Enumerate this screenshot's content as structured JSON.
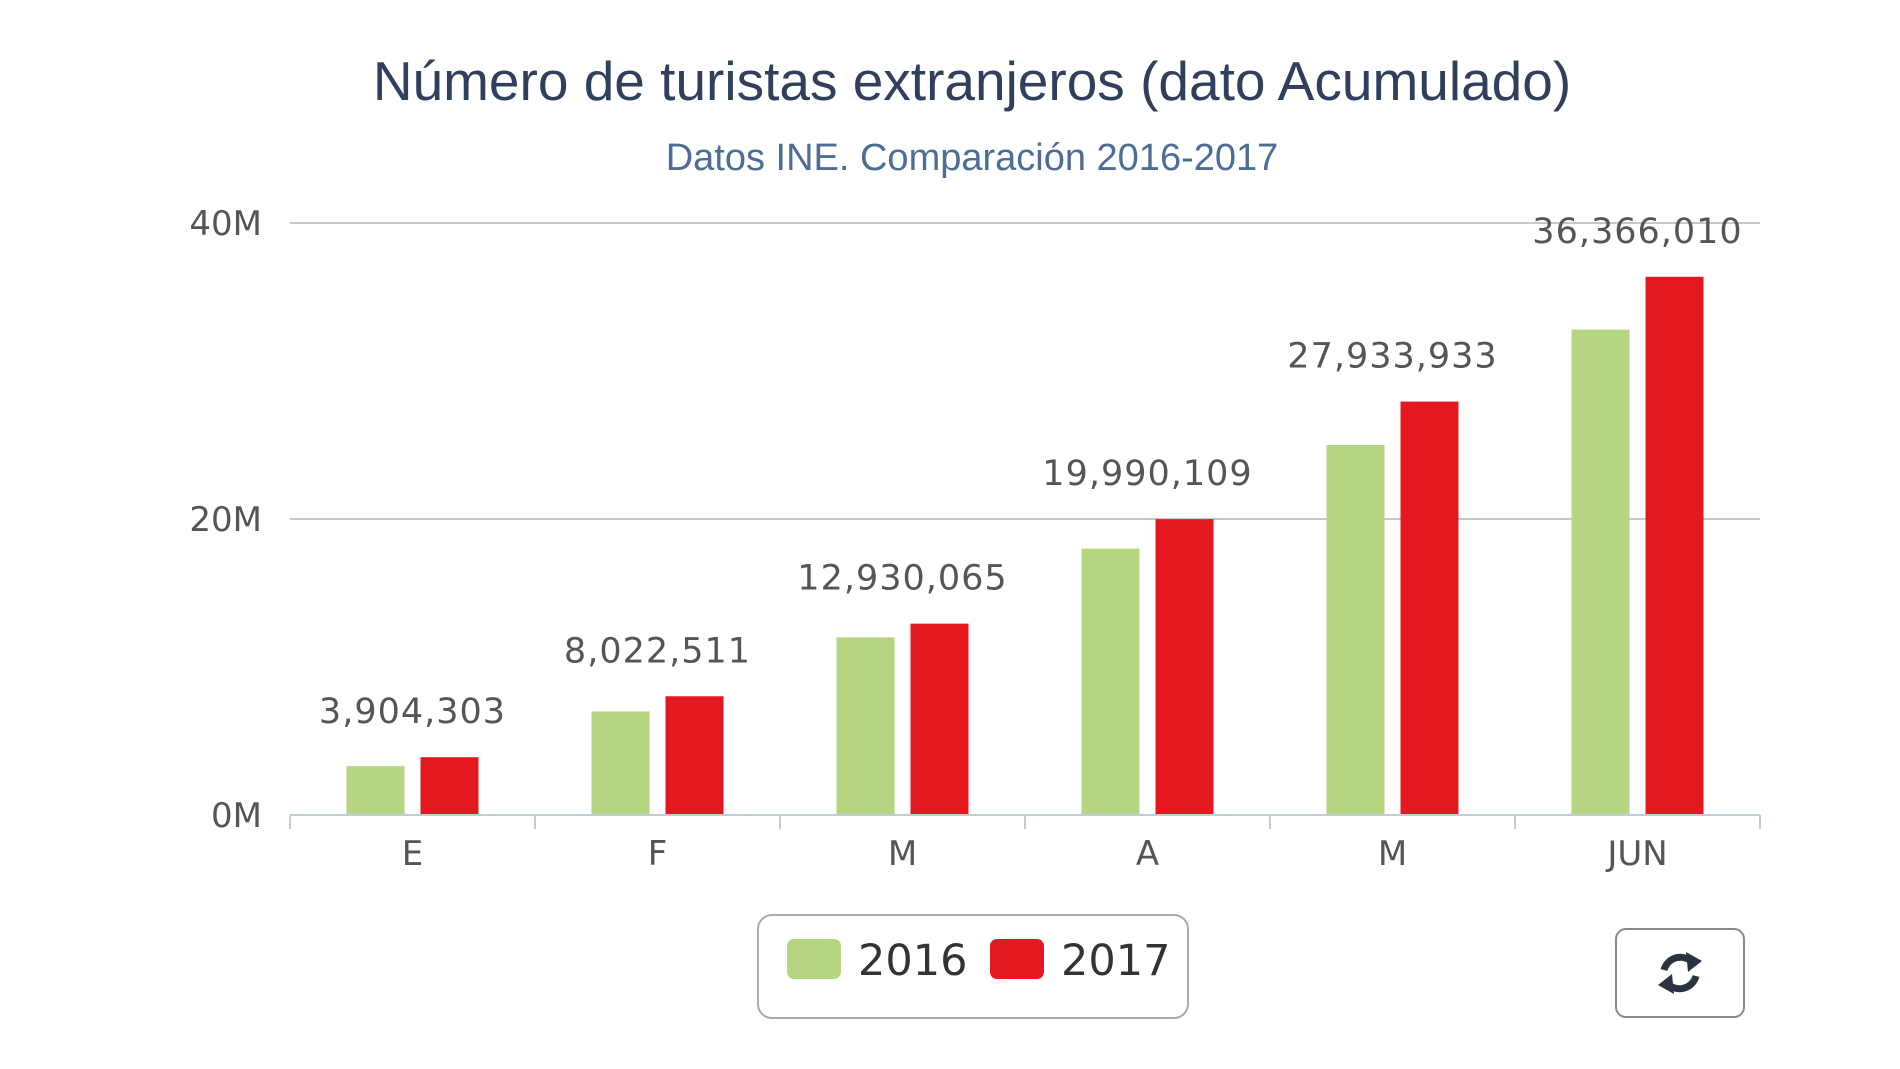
{
  "chart_data": {
    "type": "bar",
    "title": "Número de turistas extranjeros (dato Acumulado)",
    "subtitle": "Datos INE. Comparación 2016-2017",
    "categories": [
      "E",
      "F",
      "M",
      "A",
      "M",
      "JUN"
    ],
    "series": [
      {
        "name": "2016",
        "color": "#b5d580",
        "values": [
          3300000,
          7000000,
          12000000,
          18000000,
          25000000,
          32800000
        ]
      },
      {
        "name": "2017",
        "color": "#e3191f",
        "values": [
          3904303,
          8022511,
          12930065,
          19990109,
          27933933,
          36366010
        ]
      }
    ],
    "data_labels": [
      "3,904,303",
      "8,022,511",
      "12,930,065",
      "19,990,109",
      "27,933,933",
      "36,366,010"
    ],
    "ylim": [
      0,
      40000000
    ],
    "y_ticks": [
      {
        "value": 0,
        "label": "0M"
      },
      {
        "value": 20000000,
        "label": "20M"
      },
      {
        "value": 40000000,
        "label": "40M"
      }
    ],
    "grid": true,
    "legend": "bottom-center",
    "xlabel": "",
    "ylabel": ""
  },
  "toolbar": {
    "refresh_icon": "refresh-icon"
  }
}
